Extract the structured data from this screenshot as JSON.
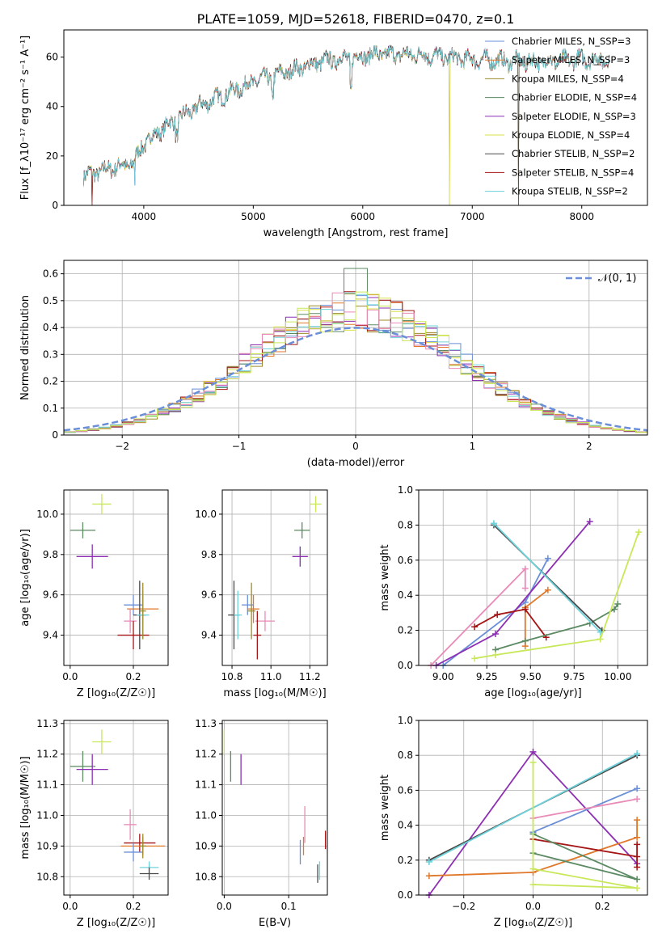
{
  "figure_title": "PLATE=1059, MJD=52618, FIBERID=0470, z=0.1",
  "colors": [
    "#6a8fd8",
    "#e0782a",
    "#9c8a2a",
    "#5b8a63",
    "#8d2eb3",
    "#d9e24a",
    "#4a4a4a",
    "#a51515",
    "#6fd3dc",
    "#e98ab8",
    "#7a7a7a",
    "#c8e85a"
  ],
  "chart_data": [
    {
      "id": "spectrum",
      "type": "line",
      "title": "",
      "xlabel": "wavelength [Angstrom, rest frame]",
      "ylabel": "Flux [f_λ10⁻¹⁷ erg cm⁻² s⁻¹ A⁻¹]",
      "xlim": [
        3270,
        8600
      ],
      "ylim": [
        0,
        71
      ],
      "xticks": [
        4000,
        5000,
        6000,
        7000,
        8000
      ],
      "yticks": [
        0,
        20,
        40,
        60
      ],
      "legend_position": "top-right",
      "legend": [
        {
          "label": "Chabrier MILES, N_SSP=3",
          "color": "#6a8fd8"
        },
        {
          "label": "Salpeter MILES, N_SSP=3",
          "color": "#e0782a"
        },
        {
          "label": "Kroupa MILES, N_SSP=4",
          "color": "#9c8a2a"
        },
        {
          "label": "Chabrier ELODIE, N_SSP=4",
          "color": "#5b8a63"
        },
        {
          "label": "Salpeter ELODIE, N_SSP=3",
          "color": "#8d2eb3"
        },
        {
          "label": "Kroupa ELODIE, N_SSP=4",
          "color": "#d9e24a"
        },
        {
          "label": "Chabrier STELIB, N_SSP=2",
          "color": "#4a4a4a"
        },
        {
          "label": "Salpeter STELIB, N_SSP=4",
          "color": "#a51515"
        },
        {
          "label": "Kroupa STELIB, N_SSP=2",
          "color": "#6fd3dc"
        }
      ],
      "continuum": [
        [
          3450,
          12
        ],
        [
          3700,
          15
        ],
        [
          3900,
          17
        ],
        [
          4000,
          25
        ],
        [
          4200,
          32
        ],
        [
          4500,
          40
        ],
        [
          4800,
          46
        ],
        [
          5000,
          50
        ],
        [
          5300,
          54
        ],
        [
          5600,
          58
        ],
        [
          5900,
          60
        ],
        [
          6100,
          61
        ],
        [
          6500,
          61
        ],
        [
          7000,
          59
        ],
        [
          7500,
          58
        ],
        [
          8000,
          59
        ],
        [
          8250,
          59
        ]
      ],
      "drops": [
        [
          3530,
          0
        ],
        [
          3920,
          8
        ],
        [
          6790,
          0
        ],
        [
          7420,
          0
        ]
      ]
    },
    {
      "id": "residuals",
      "type": "histogram",
      "xlabel": "(data-model)/error",
      "ylabel": "Normed distribution",
      "xlim": [
        -2.5,
        2.5
      ],
      "ylim": [
        0,
        0.65
      ],
      "xticks": [
        -2,
        -1,
        0,
        1,
        2
      ],
      "yticks": [
        0.0,
        0.1,
        0.2,
        0.3,
        0.4,
        0.5,
        0.6
      ],
      "legend_position": "top-right",
      "legend": [
        {
          "label": "𝒩(0, 1)",
          "color": "#6a8fd8",
          "style": "dashed"
        }
      ],
      "bin_width": 0.1,
      "peak": 0.46
    },
    {
      "id": "age_vs_Z",
      "type": "errorbar",
      "xlabel": "Z [log₁₀(Z/Z☉)]",
      "ylabel": "age  [log₁₀(age/yr)]",
      "xlim": [
        -0.02,
        0.31
      ],
      "ylim": [
        9.25,
        10.12
      ],
      "xticks": [
        "0.0",
        "0.2"
      ],
      "yticks": [
        "9.4",
        "9.6",
        "9.8",
        "10.0"
      ],
      "points": [
        {
          "x": 0.1,
          "y": 10.05,
          "xe": 0.03,
          "ye": 0.05,
          "c": 11
        },
        {
          "x": 0.04,
          "y": 9.92,
          "xe": 0.04,
          "ye": 0.04,
          "c": 3
        },
        {
          "x": 0.07,
          "y": 9.79,
          "xe": 0.05,
          "ye": 0.06,
          "c": 4
        },
        {
          "x": 0.2,
          "y": 9.55,
          "xe": 0.03,
          "ye": 0.05,
          "c": 0
        },
        {
          "x": 0.23,
          "y": 9.53,
          "xe": 0.05,
          "ye": 0.07,
          "c": 1
        },
        {
          "x": 0.19,
          "y": 9.47,
          "xe": 0.02,
          "ye": 0.06,
          "c": 9
        },
        {
          "x": 0.22,
          "y": 9.5,
          "xe": 0.02,
          "ye": 0.17,
          "c": 6
        },
        {
          "x": 0.23,
          "y": 9.5,
          "xe": 0.02,
          "ye": 0.12,
          "c": 8
        },
        {
          "x": 0.2,
          "y": 9.4,
          "xe": 0.05,
          "ye": 0.07,
          "c": 7
        },
        {
          "x": 0.23,
          "y": 9.52,
          "xe": 0.01,
          "ye": 0.14,
          "c": 2
        }
      ]
    },
    {
      "id": "age_vs_mass",
      "type": "errorbar",
      "xlabel": "mass [log₁₀(M/M☉)]",
      "ylabel": "",
      "xlim": [
        10.75,
        11.29
      ],
      "ylim": [
        9.25,
        10.12
      ],
      "xticks": [
        "10.8",
        "11.0",
        "11.2"
      ],
      "yticks": [
        "9.4",
        "9.6",
        "9.8",
        "10.0"
      ],
      "points": [
        {
          "x": 11.23,
          "y": 10.05,
          "xe": 0.03,
          "ye": 0.04,
          "c": 11
        },
        {
          "x": 11.16,
          "y": 9.92,
          "xe": 0.04,
          "ye": 0.04,
          "c": 3
        },
        {
          "x": 11.15,
          "y": 9.79,
          "xe": 0.04,
          "ye": 0.05,
          "c": 4
        },
        {
          "x": 10.97,
          "y": 9.47,
          "xe": 0.05,
          "ye": 0.05,
          "c": 9
        },
        {
          "x": 10.88,
          "y": 9.55,
          "xe": 0.03,
          "ye": 0.05,
          "c": 0
        },
        {
          "x": 10.91,
          "y": 9.53,
          "xe": 0.03,
          "ye": 0.07,
          "c": 1
        },
        {
          "x": 10.81,
          "y": 9.5,
          "xe": 0.03,
          "ye": 0.17,
          "c": 6
        },
        {
          "x": 10.83,
          "y": 9.5,
          "xe": 0.02,
          "ye": 0.12,
          "c": 8
        },
        {
          "x": 10.93,
          "y": 9.4,
          "xe": 0.02,
          "ye": 0.12,
          "c": 7
        },
        {
          "x": 10.9,
          "y": 9.52,
          "xe": 0.02,
          "ye": 0.14,
          "c": 2
        }
      ]
    },
    {
      "id": "weight_vs_age",
      "type": "line",
      "xlabel": "age  [log₁₀(age/yr)]",
      "ylabel": "mass weight",
      "xlim": [
        8.86,
        10.17
      ],
      "ylim": [
        0,
        1
      ],
      "xticks": [
        "9.00",
        "9.25",
        "9.50",
        "9.75",
        "10.00"
      ],
      "yticks": [
        "0.0",
        "0.2",
        "0.4",
        "0.6",
        "0.8",
        "1.0"
      ],
      "series": [
        {
          "c": 0,
          "pts": [
            [
              9.0,
              0.0
            ],
            [
              9.47,
              0.36
            ],
            [
              9.6,
              0.61
            ]
          ]
        },
        {
          "c": 1,
          "pts": [
            [
              9.47,
              0.11
            ],
            [
              9.47,
              0.33
            ],
            [
              9.6,
              0.43
            ]
          ]
        },
        {
          "c": 9,
          "pts": [
            [
              8.93,
              0.0
            ],
            [
              9.47,
              0.55
            ],
            [
              9.47,
              0.44
            ]
          ]
        },
        {
          "c": 4,
          "pts": [
            [
              8.96,
              0.0
            ],
            [
              9.3,
              0.18
            ],
            [
              9.84,
              0.82
            ]
          ]
        },
        {
          "c": 7,
          "pts": [
            [
              9.18,
              0.22
            ],
            [
              9.31,
              0.29
            ],
            [
              9.47,
              0.32
            ],
            [
              9.59,
              0.16
            ]
          ]
        },
        {
          "c": 3,
          "pts": [
            [
              9.3,
              0.09
            ],
            [
              9.47,
              0.14
            ],
            [
              9.84,
              0.24
            ],
            [
              9.98,
              0.32
            ],
            [
              10.0,
              0.35
            ]
          ]
        },
        {
          "c": 6,
          "pts": [
            [
              9.29,
              0.8
            ],
            [
              9.91,
              0.2
            ]
          ]
        },
        {
          "c": 8,
          "pts": [
            [
              9.29,
              0.81
            ],
            [
              9.9,
              0.19
            ]
          ]
        },
        {
          "c": 11,
          "pts": [
            [
              9.18,
              0.04
            ],
            [
              9.3,
              0.06
            ],
            [
              9.9,
              0.15
            ],
            [
              10.12,
              0.76
            ]
          ]
        }
      ]
    },
    {
      "id": "mass_vs_Z",
      "type": "errorbar",
      "xlabel": "Z [log₁₀(Z/Z☉)]",
      "ylabel": "mass [log₁₀(M/M☉)]",
      "xlim": [
        -0.02,
        0.31
      ],
      "ylim": [
        10.74,
        11.31
      ],
      "xticks": [
        "0.0",
        "0.2"
      ],
      "yticks": [
        "10.8",
        "10.9",
        "11.0",
        "11.1",
        "11.2",
        "11.3"
      ],
      "points": [
        {
          "x": 0.1,
          "y": 11.24,
          "xe": 0.03,
          "ye": 0.04,
          "c": 11
        },
        {
          "x": 0.04,
          "y": 11.16,
          "xe": 0.04,
          "ye": 0.05,
          "c": 3
        },
        {
          "x": 0.07,
          "y": 11.15,
          "xe": 0.05,
          "ye": 0.05,
          "c": 4
        },
        {
          "x": 0.19,
          "y": 10.97,
          "xe": 0.02,
          "ye": 0.05,
          "c": 9
        },
        {
          "x": 0.22,
          "y": 10.91,
          "xe": 0.05,
          "ye": 0.03,
          "c": 7
        },
        {
          "x": 0.23,
          "y": 10.9,
          "xe": 0.07,
          "ye": 0.03,
          "c": 1
        },
        {
          "x": 0.2,
          "y": 10.88,
          "xe": 0.03,
          "ye": 0.03,
          "c": 0
        },
        {
          "x": 0.23,
          "y": 10.9,
          "xe": 0.01,
          "ye": 0.04,
          "c": 2
        },
        {
          "x": 0.25,
          "y": 10.83,
          "xe": 0.03,
          "ye": 0.02,
          "c": 8
        },
        {
          "x": 0.25,
          "y": 10.81,
          "xe": 0.03,
          "ye": 0.02,
          "c": 6
        }
      ]
    },
    {
      "id": "mass_vs_ebv",
      "type": "errorbar",
      "xlabel": "E(B-V)",
      "ylabel": "",
      "xlim": [
        -0.003,
        0.16
      ],
      "ylim": [
        10.74,
        11.31
      ],
      "xticks": [
        "0.0",
        "0.1"
      ],
      "yticks": [
        "10.8",
        "10.9",
        "11.0",
        "11.1",
        "11.2",
        "11.3"
      ],
      "points": [
        {
          "x": 0.0,
          "y": 11.24,
          "xe": 0.0,
          "ye": 0.04,
          "c": 11
        },
        {
          "x": 0.01,
          "y": 11.16,
          "xe": 0.0,
          "ye": 0.05,
          "c": 3
        },
        {
          "x": 0.026,
          "y": 11.15,
          "xe": 0.0,
          "ye": 0.05,
          "c": 4
        },
        {
          "x": 0.125,
          "y": 10.97,
          "xe": 0.0,
          "ye": 0.06,
          "c": 9
        },
        {
          "x": 0.123,
          "y": 10.9,
          "xe": 0.0,
          "ye": 0.03,
          "c": 1
        },
        {
          "x": 0.118,
          "y": 10.88,
          "xe": 0.0,
          "ye": 0.04,
          "c": 0
        },
        {
          "x": 0.157,
          "y": 10.92,
          "xe": 0.0,
          "ye": 0.03,
          "c": 7
        },
        {
          "x": 0.148,
          "y": 10.82,
          "xe": 0.0,
          "ye": 0.03,
          "c": 8
        },
        {
          "x": 0.145,
          "y": 10.81,
          "xe": 0.0,
          "ye": 0.03,
          "c": 6
        }
      ]
    },
    {
      "id": "weight_vs_Z",
      "type": "line",
      "xlabel": "Z [log₁₀(Z/Z☉)]",
      "ylabel": "mass weight",
      "xlim": [
        -0.33,
        0.33
      ],
      "ylim": [
        0,
        1
      ],
      "xticks": [
        "-0.2",
        "0.0",
        "0.2"
      ],
      "yticks": [
        "0.0",
        "0.2",
        "0.4",
        "0.6",
        "0.8",
        "1.0"
      ],
      "series": [
        {
          "c": 4,
          "pts": [
            [
              -0.3,
              0.0
            ],
            [
              0.0,
              0.82
            ],
            [
              0.3,
              0.18
            ]
          ]
        },
        {
          "c": 1,
          "pts": [
            [
              -0.3,
              0.11
            ],
            [
              0.0,
              0.13
            ],
            [
              0.3,
              0.33
            ],
            [
              0.3,
              0.43
            ]
          ]
        },
        {
          "c": 6,
          "pts": [
            [
              -0.3,
              0.2
            ],
            [
              0.3,
              0.8
            ]
          ]
        },
        {
          "c": 8,
          "pts": [
            [
              -0.3,
              0.19
            ],
            [
              0.3,
              0.81
            ]
          ]
        },
        {
          "c": 0,
          "pts": [
            [
              0.0,
              0.36
            ],
            [
              0.3,
              0.61
            ]
          ]
        },
        {
          "c": 9,
          "pts": [
            [
              0.0,
              0.44
            ],
            [
              0.3,
              0.55
            ]
          ]
        },
        {
          "c": 7,
          "pts": [
            [
              0.0,
              0.32
            ],
            [
              0.3,
              0.22
            ],
            [
              0.3,
              0.16
            ],
            [
              0.3,
              0.29
            ]
          ]
        },
        {
          "c": 3,
          "pts": [
            [
              0.0,
              0.35
            ],
            [
              0.3,
              0.09
            ],
            [
              0.0,
              0.24
            ]
          ]
        },
        {
          "c": 11,
          "pts": [
            [
              0.0,
              0.76
            ],
            [
              0.0,
              0.15
            ],
            [
              0.3,
              0.04
            ],
            [
              0.0,
              0.06
            ]
          ]
        }
      ]
    }
  ]
}
